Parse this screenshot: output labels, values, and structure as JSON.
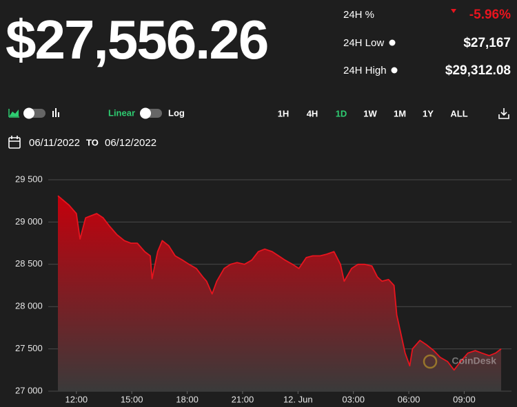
{
  "price": "$27,556.26",
  "stats": [
    {
      "label": "24H %",
      "value": "-5.96%"
    },
    {
      "label": "24H Low",
      "value": "$27,167"
    },
    {
      "label": "24H High",
      "value": "$29,312.08"
    }
  ],
  "scale_options": [
    "Linear",
    "Log"
  ],
  "ranges": [
    "1H",
    "4H",
    "1D",
    "1W",
    "1M",
    "1Y",
    "ALL"
  ],
  "active_range": "1D",
  "date_from": "06/11/2022",
  "date_sep": "TO",
  "date_to": "06/12/2022",
  "chart_data": {
    "type": "area",
    "watermark": "CoinDesk",
    "color": "#e8141e",
    "log_scale": false,
    "grid": true,
    "x": [
      11,
      11.6,
      12,
      12.2,
      12.5,
      13.1,
      13.45,
      13.8,
      14.2,
      14.6,
      14.95,
      15.3,
      15.7,
      16,
      16.1,
      16.4,
      16.65,
      17,
      17.35,
      17.75,
      18.1,
      18.5,
      18.85,
      19.05,
      19.35,
      19.6,
      20,
      20.35,
      20.7,
      21.1,
      21.5,
      21.85,
      22.2,
      22.6,
      22.95,
      23.3,
      23.7,
      24.05,
      24.45,
      24.8,
      25.2,
      25.55,
      25.95,
      26.3,
      26.5,
      26.9,
      27.25,
      27.6,
      28,
      28.3,
      28.55,
      28.9,
      29.2,
      29.35,
      29.55,
      29.8,
      30.05,
      30.2,
      30.6,
      30.95,
      31.35,
      31.7,
      32.1,
      32.45,
      32.8,
      33.2,
      33.6,
      33.95,
      34.35,
      34.7,
      35
    ],
    "values": [
      29310,
      29200,
      29100,
      28800,
      29050,
      29100,
      29050,
      28950,
      28850,
      28780,
      28750,
      28750,
      28650,
      28600,
      28330,
      28650,
      28780,
      28720,
      28600,
      28550,
      28500,
      28450,
      28350,
      28300,
      28150,
      28300,
      28450,
      28500,
      28520,
      28500,
      28550,
      28650,
      28680,
      28650,
      28600,
      28550,
      28500,
      28450,
      28580,
      28600,
      28600,
      28620,
      28650,
      28500,
      28300,
      28450,
      28500,
      28500,
      28480,
      28350,
      28300,
      28320,
      28250,
      27900,
      27700,
      27450,
      27300,
      27500,
      27600,
      27550,
      27480,
      27400,
      27350,
      27250,
      27350,
      27450,
      27480,
      27450,
      27420,
      27450,
      27500
    ],
    "xlim": [
      11,
      35
    ],
    "xticks": [
      {
        "value": 12,
        "label": "12:00"
      },
      {
        "value": 15,
        "label": "15:00"
      },
      {
        "value": 18,
        "label": "18:00"
      },
      {
        "value": 21,
        "label": "21:00"
      },
      {
        "value": 24,
        "label": "12. Jun"
      },
      {
        "value": 27,
        "label": "03:00"
      },
      {
        "value": 30,
        "label": "06:00"
      },
      {
        "value": 33,
        "label": "09:00"
      }
    ],
    "ylim": [
      27000,
      29500
    ],
    "yticks": [
      {
        "value": 27000,
        "label": "27 000"
      },
      {
        "value": 27500,
        "label": "27 500"
      },
      {
        "value": 28000,
        "label": "28 000"
      },
      {
        "value": 28500,
        "label": "28 500"
      },
      {
        "value": 29000,
        "label": "29 000"
      },
      {
        "value": 29500,
        "label": "29 500"
      }
    ]
  }
}
